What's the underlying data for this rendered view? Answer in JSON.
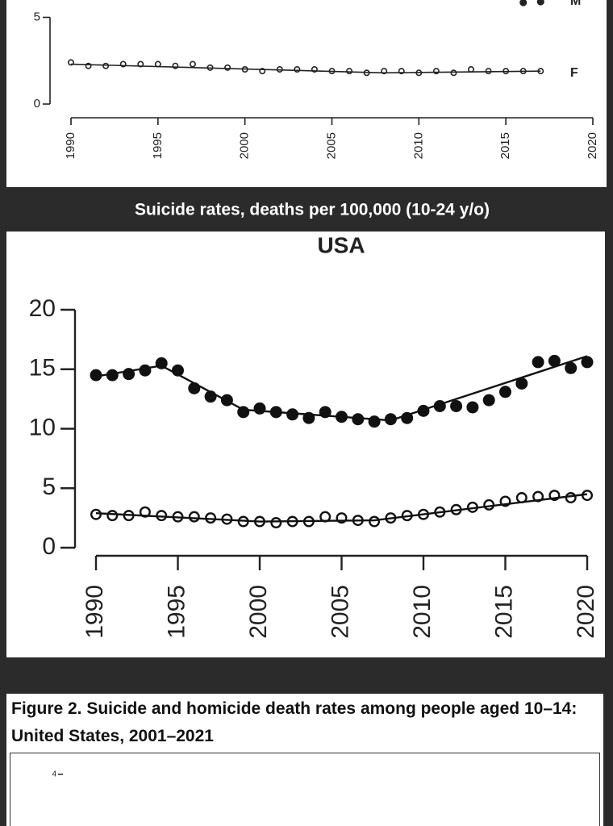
{
  "chart_data": [
    {
      "type": "line",
      "xlim": [
        1990,
        2020
      ],
      "xticks": [
        1990,
        1995,
        2000,
        2005,
        2010,
        2015,
        2020
      ],
      "ylim": [
        0,
        6
      ],
      "yticks": [
        0,
        5
      ],
      "annotations": [
        "M",
        "F"
      ],
      "series": [
        {
          "marker": "open",
          "color": "#222",
          "x": [
            1990,
            1991,
            1992,
            1993,
            1994,
            1995,
            1996,
            1997,
            1998,
            1999,
            2000,
            2001,
            2002,
            2003,
            2004,
            2005,
            2006,
            2007,
            2008,
            2009,
            2010,
            2011,
            2012,
            2013,
            2014,
            2015,
            2016,
            2017
          ],
          "values": [
            2.4,
            2.2,
            2.2,
            2.3,
            2.3,
            2.3,
            2.2,
            2.3,
            2.1,
            2.1,
            2.0,
            1.9,
            2.0,
            2.0,
            2.0,
            1.9,
            1.9,
            1.8,
            1.9,
            1.9,
            1.8,
            1.9,
            1.8,
            2.0,
            1.9,
            1.9,
            1.9,
            1.9
          ]
        },
        {
          "marker": "line",
          "color": "#222",
          "x": [
            1990,
            2008,
            2017
          ],
          "values": [
            2.3,
            1.8,
            1.9
          ]
        },
        {
          "marker": "filled",
          "color": "#222",
          "x": [
            2016,
            2017
          ],
          "values": [
            5.85,
            5.9
          ]
        }
      ]
    },
    {
      "type": "line",
      "header": "Suicide rates, deaths per 100,000 (10-24 y/o)",
      "title": "USA",
      "xlim": [
        1990,
        2020
      ],
      "xticks": [
        1990,
        1995,
        2000,
        2005,
        2010,
        2015,
        2020
      ],
      "ylim": [
        0,
        20
      ],
      "yticks": [
        0,
        5,
        10,
        15,
        20
      ],
      "series": [
        {
          "marker": "filled",
          "color": "#111",
          "x": [
            1990,
            1991,
            1992,
            1993,
            1994,
            1995,
            1996,
            1997,
            1998,
            1999,
            2000,
            2001,
            2002,
            2003,
            2004,
            2005,
            2006,
            2007,
            2008,
            2009,
            2010,
            2011,
            2012,
            2013,
            2014,
            2015,
            2016,
            2017,
            2018,
            2019,
            2020
          ],
          "values": [
            14.5,
            14.5,
            14.6,
            14.9,
            15.5,
            14.9,
            13.4,
            12.7,
            12.4,
            11.4,
            11.7,
            11.4,
            11.2,
            10.9,
            11.4,
            11.0,
            10.8,
            10.6,
            10.8,
            10.9,
            11.5,
            11.9,
            11.9,
            11.8,
            12.4,
            13.1,
            13.8,
            15.6,
            15.7,
            15.1,
            15.6
          ]
        },
        {
          "marker": "line",
          "color": "#111",
          "x": [
            1990,
            1994,
            1999,
            2008,
            2020
          ],
          "values": [
            14.4,
            15.3,
            11.6,
            10.7,
            16.1
          ]
        },
        {
          "marker": "open",
          "color": "#111",
          "x": [
            1990,
            1991,
            1992,
            1993,
            1994,
            1995,
            1996,
            1997,
            1998,
            1999,
            2000,
            2001,
            2002,
            2003,
            2004,
            2005,
            2006,
            2007,
            2008,
            2009,
            2010,
            2011,
            2012,
            2013,
            2014,
            2015,
            2016,
            2017,
            2018,
            2019,
            2020
          ],
          "values": [
            2.8,
            2.7,
            2.7,
            3.0,
            2.7,
            2.6,
            2.6,
            2.5,
            2.4,
            2.2,
            2.2,
            2.1,
            2.2,
            2.2,
            2.6,
            2.5,
            2.3,
            2.2,
            2.5,
            2.7,
            2.8,
            3.0,
            3.2,
            3.4,
            3.6,
            3.9,
            4.2,
            4.3,
            4.4,
            4.2,
            4.4
          ]
        },
        {
          "marker": "line",
          "color": "#111",
          "x": [
            1990,
            2000,
            2007,
            2020
          ],
          "values": [
            2.9,
            2.2,
            2.3,
            4.5
          ]
        }
      ]
    },
    {
      "type": "line",
      "title": "Figure 2. Suicide and homicide death rates among people aged 10–14: United States, 2001–2021",
      "ylim": [
        0,
        4
      ],
      "yticks": [
        4
      ]
    }
  ]
}
